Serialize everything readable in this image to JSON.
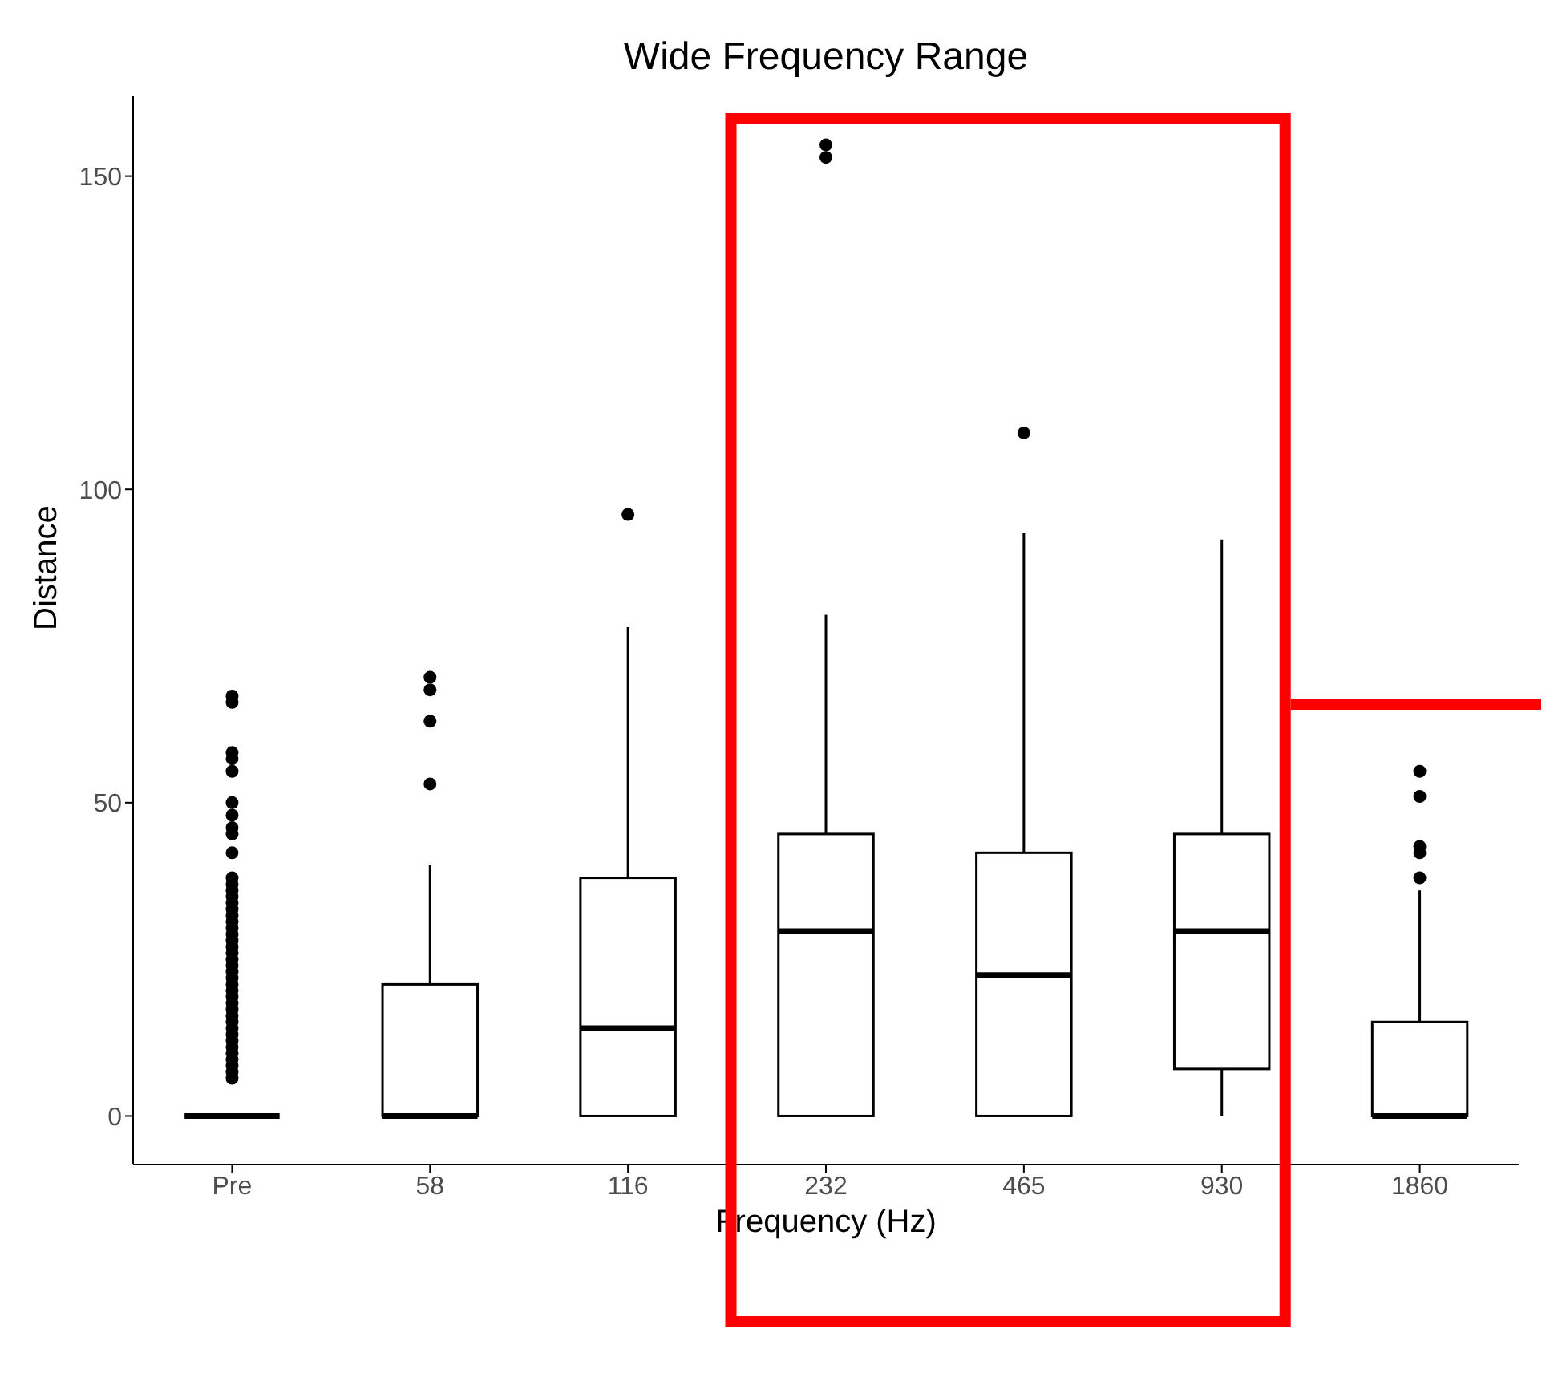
{
  "chart_data": {
    "type": "box",
    "title": "Wide Frequency Range",
    "xlabel": "Frequency (Hz)",
    "ylabel": "Distance",
    "categories": [
      "Pre",
      "58",
      "116",
      "232",
      "465",
      "930",
      "1860"
    ],
    "boxes": [
      {
        "low": 0,
        "q1": 0,
        "median": 0,
        "q3": 0,
        "high": 0,
        "outliers": [
          67,
          66,
          58,
          57,
          55,
          50,
          48,
          46,
          45,
          42,
          38,
          37,
          36,
          35,
          34,
          33,
          32,
          31,
          30,
          29,
          28,
          27,
          26,
          25,
          24,
          23,
          22,
          21,
          20,
          19,
          18,
          17,
          16,
          15,
          14,
          13,
          12,
          11,
          10,
          9,
          8,
          7,
          6
        ]
      },
      {
        "low": 0,
        "q1": 0,
        "median": 0,
        "q3": 21,
        "high": 40,
        "outliers": [
          53,
          63,
          68,
          70
        ]
      },
      {
        "low": 0,
        "q1": 0,
        "median": 14,
        "q3": 38,
        "high": 78,
        "outliers": [
          96
        ]
      },
      {
        "low": 0,
        "q1": 0,
        "median": 29.5,
        "q3": 45,
        "high": 80,
        "outliers": [
          153,
          155
        ]
      },
      {
        "low": 0,
        "q1": 0,
        "median": 22.5,
        "q3": 42,
        "high": 93,
        "outliers": [
          109
        ]
      },
      {
        "low": 0,
        "q1": 7.5,
        "median": 29.5,
        "q3": 45,
        "high": 92
      },
      {
        "low": 0,
        "q1": 0,
        "median": 0,
        "q3": 15,
        "high": 36,
        "outliers": [
          38,
          42,
          43,
          51,
          55
        ]
      }
    ],
    "ylim": [
      -7.75,
      162.75
    ],
    "yticks": [
      0,
      50,
      100,
      150
    ],
    "grid": false,
    "marker": "circle"
  }
}
